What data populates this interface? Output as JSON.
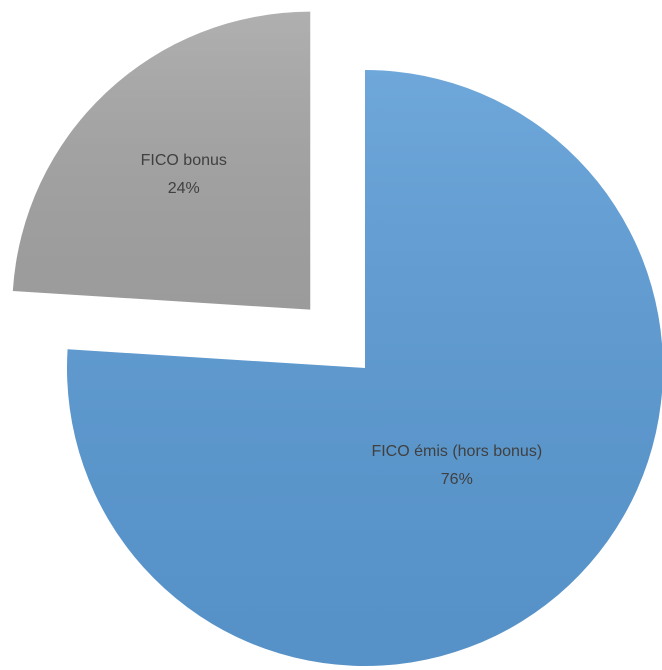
{
  "chart_data": {
    "type": "pie",
    "categories": [
      "FICO émis (hors bonus)",
      "FICO bonus"
    ],
    "values": [
      76,
      24
    ],
    "value_labels": [
      "76%",
      "24%"
    ],
    "colors": [
      "#5b9bd5",
      "#a5a5a5"
    ]
  }
}
